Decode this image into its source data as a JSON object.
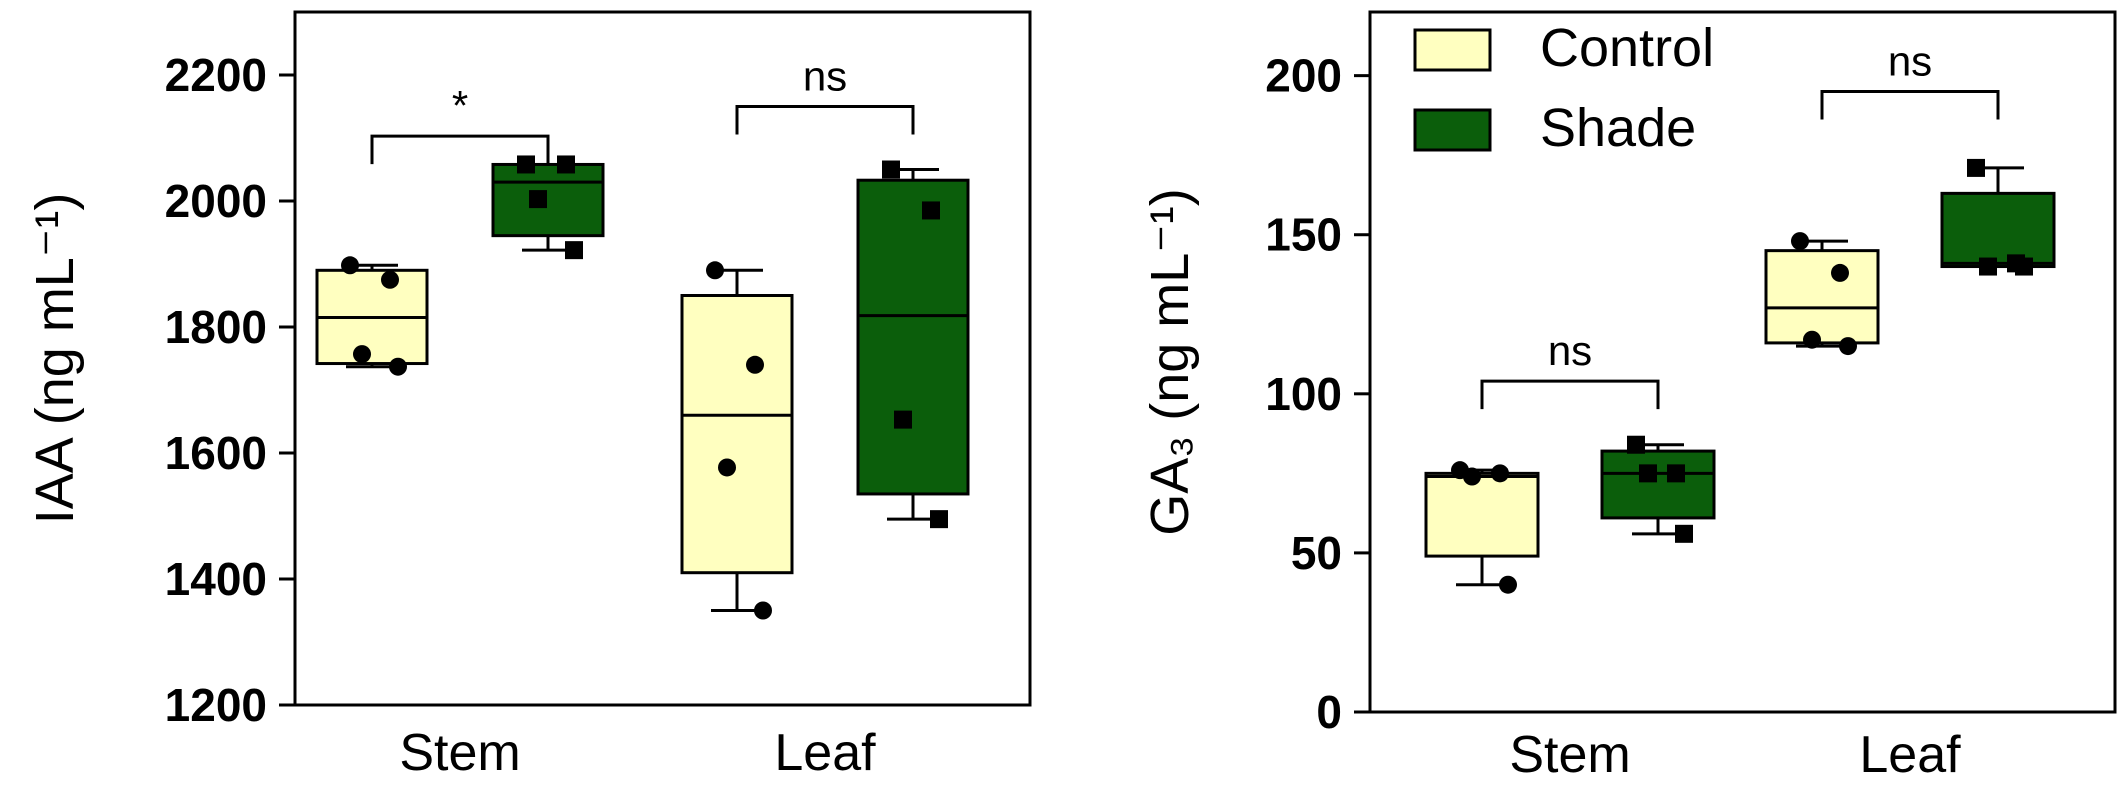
{
  "colors": {
    "control": "#ffffc0",
    "shade": "#0b5e0b",
    "stroke": "#000000"
  },
  "legend": {
    "placement": "top-left",
    "entries": [
      {
        "label": "Control",
        "color": "#ffffc0"
      },
      {
        "label": "Shade",
        "color": "#0b5e0b"
      }
    ]
  },
  "chart_data": [
    {
      "type": "box",
      "ylabel": "IAA (ng mL⁻¹)",
      "ylim": [
        1200,
        2300
      ],
      "yticks": [
        1200,
        1400,
        1600,
        1800,
        2000,
        2200
      ],
      "categories": [
        "Stem",
        "Leaf"
      ],
      "series": [
        {
          "name": "Control",
          "marker": "circle",
          "boxes": [
            {
              "min": 1737,
              "q1": 1742,
              "median": 1815,
              "q3": 1890,
              "max": 1898,
              "points": [
                1898,
                1875,
                1757,
                1737
              ]
            },
            {
              "min": 1350,
              "q1": 1410,
              "median": 1660,
              "q3": 1850,
              "max": 1890,
              "points": [
                1890,
                1740,
                1577,
                1350
              ]
            }
          ]
        },
        {
          "name": "Shade",
          "marker": "square",
          "boxes": [
            {
              "min": 1922,
              "q1": 1945,
              "median": 2030,
              "q3": 2058,
              "max": 2058,
              "points": [
                2058,
                2058,
                2003,
                1922
              ]
            },
            {
              "min": 1495,
              "q1": 1535,
              "median": 1818,
              "q3": 2033,
              "max": 2050,
              "points": [
                2050,
                1985,
                1653,
                1495
              ]
            }
          ]
        }
      ],
      "annotations": [
        {
          "category": "Stem",
          "label": "*",
          "y": 2103
        },
        {
          "category": "Leaf",
          "label": "ns",
          "y": 2150
        }
      ]
    },
    {
      "type": "box",
      "ylabel": "GA₃ (ng mL⁻¹)",
      "ylim": [
        0,
        220
      ],
      "yticks": [
        0,
        50,
        100,
        150,
        200
      ],
      "categories": [
        "Stem",
        "Leaf"
      ],
      "series": [
        {
          "name": "Control",
          "marker": "circle",
          "boxes": [
            {
              "min": 40,
              "q1": 49,
              "median": 74,
              "q3": 75,
              "max": 76,
              "points": [
                76,
                75,
                74,
                40
              ]
            },
            {
              "min": 115,
              "q1": 116,
              "median": 127,
              "q3": 145,
              "max": 148,
              "points": [
                148,
                138,
                117,
                115
              ]
            }
          ]
        },
        {
          "name": "Shade",
          "marker": "square",
          "boxes": [
            {
              "min": 56,
              "q1": 61,
              "median": 75,
              "q3": 82,
              "max": 84,
              "points": [
                84,
                75,
                75,
                56
              ]
            },
            {
              "min": 140,
              "q1": 140,
              "median": 141,
              "q3": 163,
              "max": 171,
              "points": [
                171,
                141,
                140,
                140
              ]
            }
          ]
        }
      ],
      "annotations": [
        {
          "category": "Stem",
          "label": "ns",
          "y": 104
        },
        {
          "category": "Leaf",
          "label": "ns",
          "y": 195
        }
      ]
    }
  ]
}
